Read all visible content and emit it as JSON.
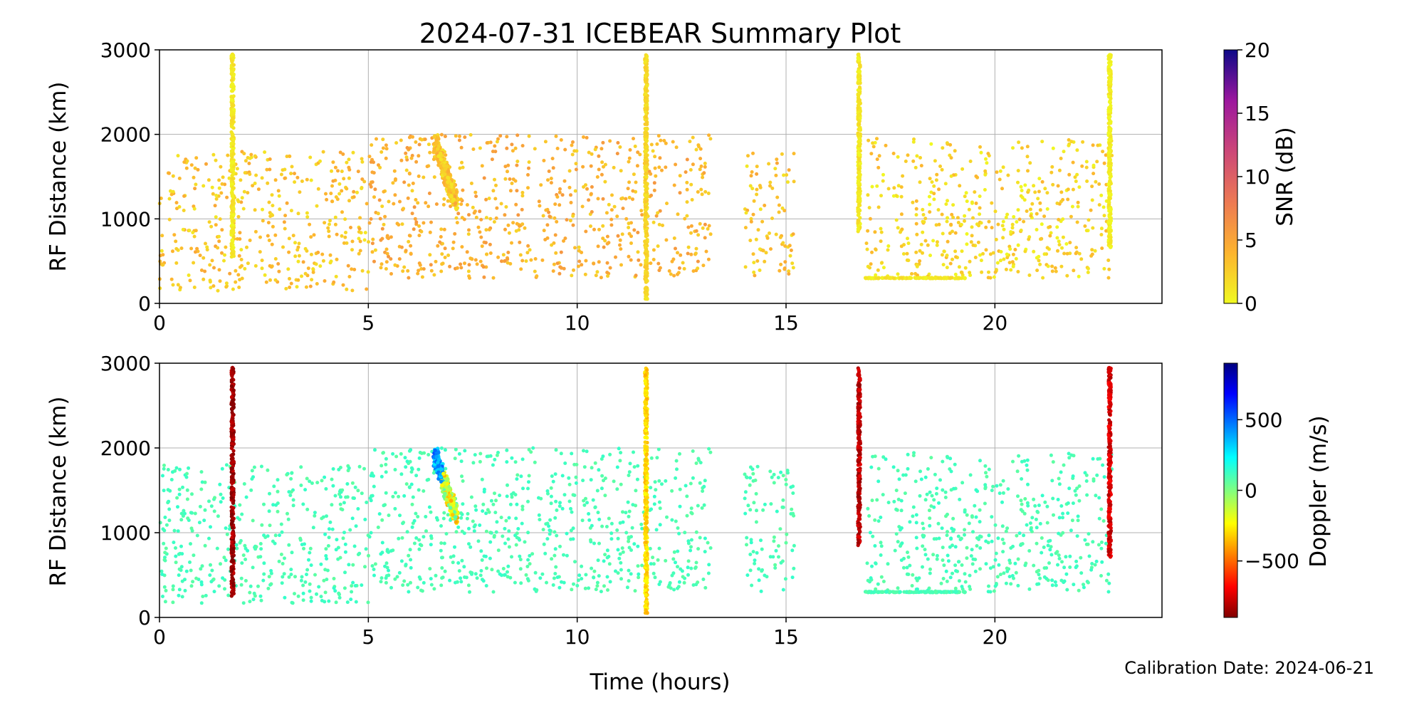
{
  "title": "2024-07-31 ICEBEAR Summary Plot",
  "footer": {
    "calibration": "Calibration Date: 2024-06-21"
  },
  "chart_data": [
    {
      "type": "scatter",
      "panel": "top",
      "ylabel": "RF Distance (km)",
      "xlim": [
        0,
        24
      ],
      "ylim": [
        0,
        3000
      ],
      "xticks": [
        0,
        5,
        10,
        15,
        20
      ],
      "yticks": [
        0,
        1000,
        2000,
        3000
      ],
      "grid": true,
      "colorbar": {
        "label": "SNR (dB)",
        "range": [
          0,
          20
        ],
        "ticks": [
          0,
          5,
          10,
          15,
          20
        ],
        "colormap": "plasma_r"
      },
      "features": [
        {
          "kind": "streak",
          "x": 1.75,
          "y_range": [
            550,
            2950
          ],
          "snr": 1
        },
        {
          "kind": "blob",
          "x_range": [
            6.6,
            7.1
          ],
          "y_range": [
            1200,
            1900
          ],
          "snr": 3
        },
        {
          "kind": "streak",
          "x": 11.65,
          "y_range": [
            50,
            2950
          ],
          "snr": 2
        },
        {
          "kind": "streak",
          "x": 16.75,
          "y_range": [
            850,
            2950
          ],
          "snr": 1
        },
        {
          "kind": "streak",
          "x": 22.75,
          "y_range": [
            650,
            2950
          ],
          "snr": 0.5
        },
        {
          "kind": "floor",
          "x_range": [
            16.9,
            19.3
          ],
          "y": 300,
          "snr": 1
        }
      ],
      "scatter_regions": [
        {
          "x_range": [
            0,
            5
          ],
          "y_range": [
            150,
            1800
          ],
          "snr": 3
        },
        {
          "x_range": [
            5,
            13.2
          ],
          "y_range": [
            300,
            2000
          ],
          "snr": 4
        },
        {
          "x_range": [
            14,
            15.2
          ],
          "y_range": [
            300,
            1800
          ],
          "snr": 3
        },
        {
          "x_range": [
            16.9,
            22.8
          ],
          "y_range": [
            300,
            1950
          ],
          "snr": 2
        }
      ]
    },
    {
      "type": "scatter",
      "panel": "bottom",
      "xlabel": "Time (hours)",
      "ylabel": "RF Distance (km)",
      "xlim": [
        0,
        24
      ],
      "ylim": [
        0,
        3000
      ],
      "xticks": [
        0,
        5,
        10,
        15,
        20
      ],
      "yticks": [
        0,
        1000,
        2000,
        3000
      ],
      "grid": true,
      "colorbar": {
        "label": "Doppler (m/s)",
        "range": [
          -900,
          900
        ],
        "ticks": [
          -500,
          0,
          500
        ],
        "colormap": "jet_r"
      },
      "features": [
        {
          "kind": "streak",
          "x": 1.75,
          "y_range": [
            250,
            2950
          ],
          "doppler": -850
        },
        {
          "kind": "blob",
          "x_range": [
            6.6,
            7.1
          ],
          "y_range": [
            1200,
            1900
          ],
          "doppler": -400
        },
        {
          "kind": "streak",
          "x": 11.65,
          "y_range": [
            50,
            2950
          ],
          "doppler": -300
        },
        {
          "kind": "streak",
          "x": 16.75,
          "y_range": [
            850,
            2950
          ],
          "doppler": -800
        },
        {
          "kind": "streak",
          "x": 22.75,
          "y_range": [
            700,
            2950
          ],
          "doppler": -750
        },
        {
          "kind": "floor",
          "x_range": [
            16.9,
            19.3
          ],
          "y": 300,
          "doppler": 100
        }
      ],
      "scatter_regions": [
        {
          "x_range": [
            0,
            5
          ],
          "y_range": [
            150,
            1800
          ],
          "doppler": 100
        },
        {
          "x_range": [
            5,
            13.2
          ],
          "y_range": [
            300,
            2000
          ],
          "doppler": 100
        },
        {
          "x_range": [
            14,
            15.2
          ],
          "y_range": [
            300,
            1800
          ],
          "doppler": 100
        },
        {
          "x_range": [
            16.9,
            22.8
          ],
          "y_range": [
            300,
            1950
          ],
          "doppler": 100
        }
      ]
    }
  ]
}
